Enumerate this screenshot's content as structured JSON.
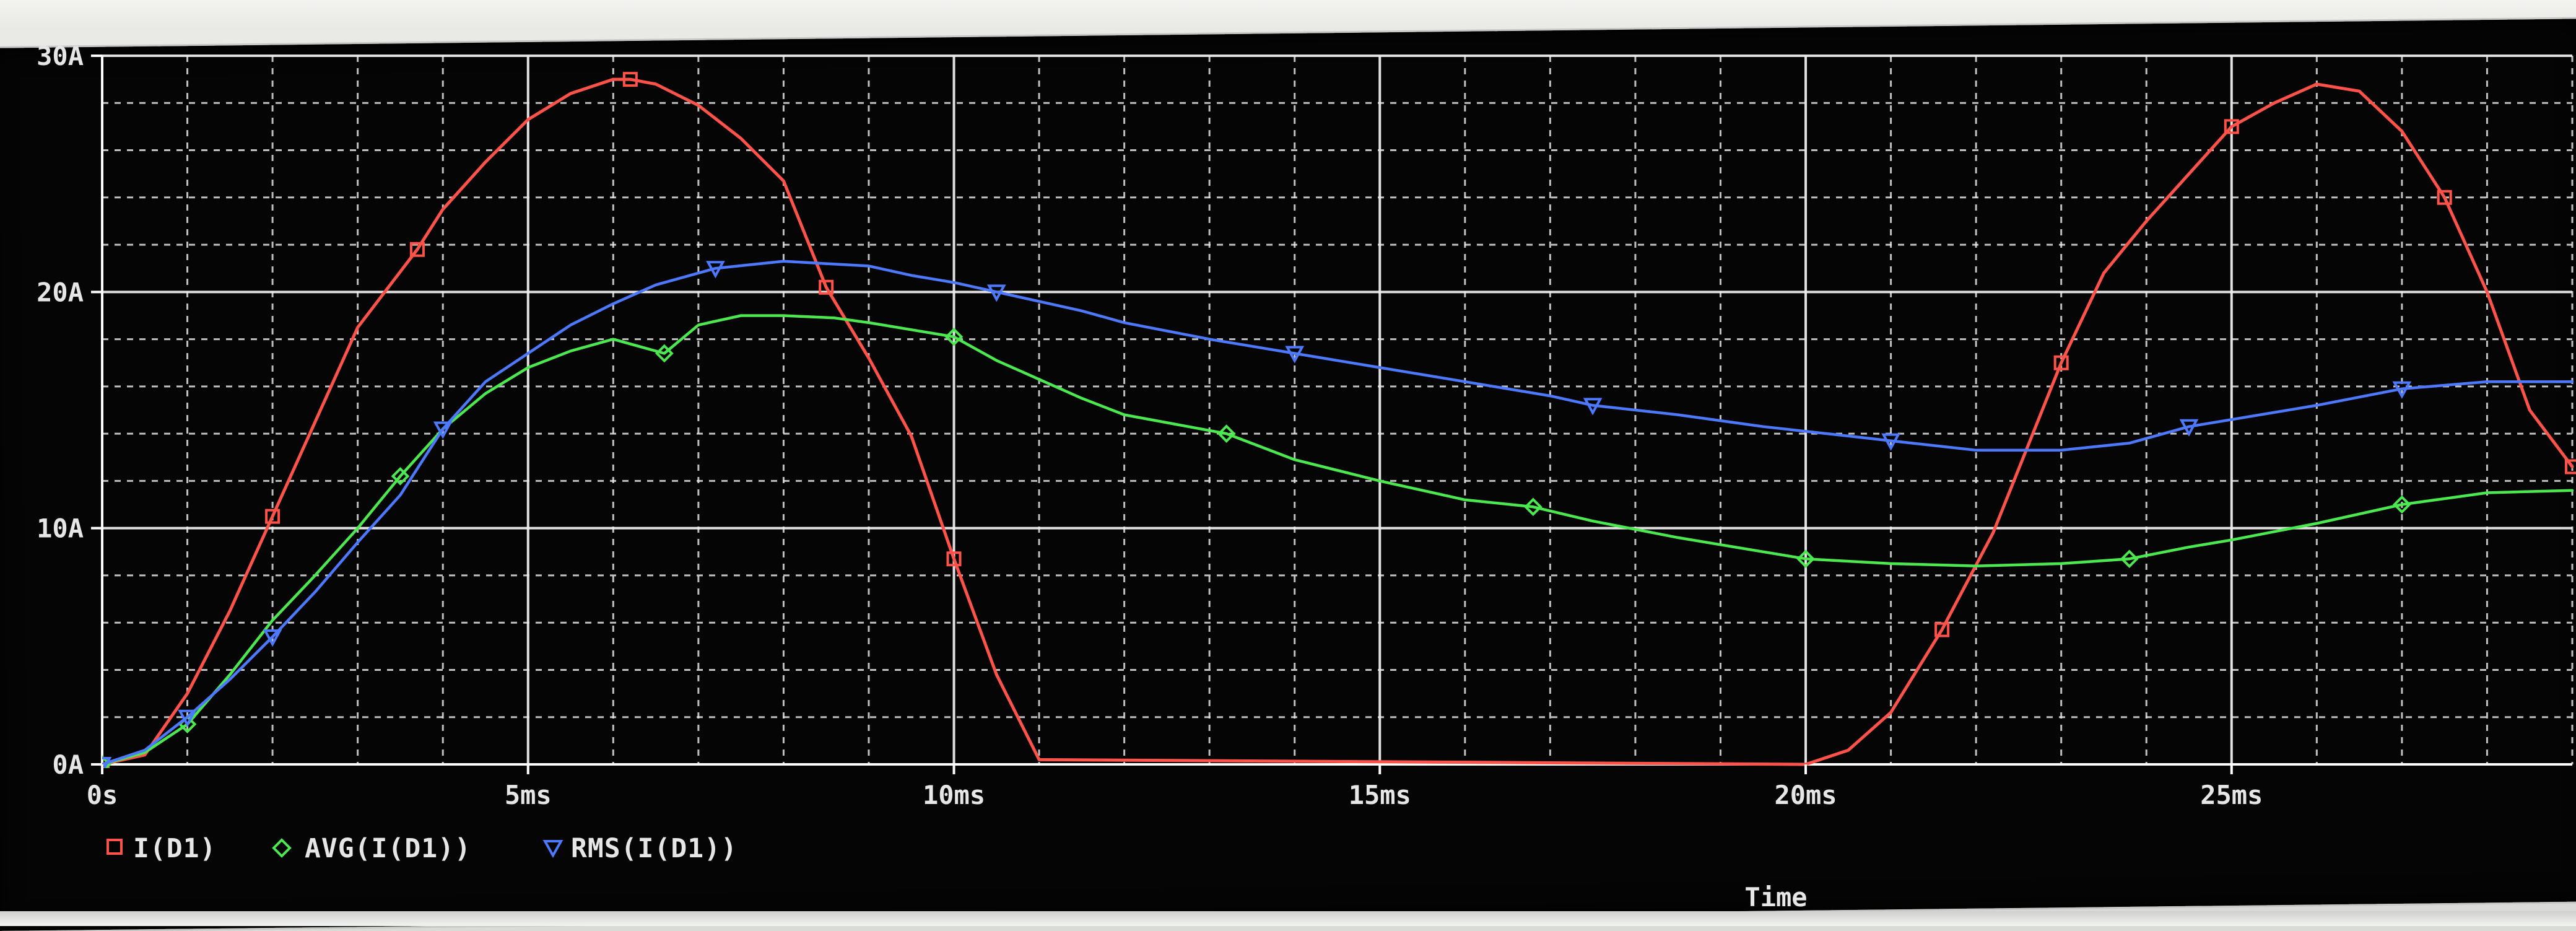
{
  "chart_data": {
    "type": "line",
    "x_unit": "ms",
    "y_unit": "A",
    "xlim": [
      0,
      29
    ],
    "ylim": [
      0,
      30
    ],
    "grid": true,
    "legend_placement": "bottom-left",
    "xlabel": "Time",
    "x_tick_labels": [
      "0s",
      "5ms",
      "10ms",
      "15ms",
      "20ms",
      "25ms"
    ],
    "y_tick_labels": [
      "0A",
      "10A",
      "20A",
      "30A"
    ],
    "series": [
      {
        "name": "I(D1)",
        "color": "#ff5248",
        "marker": "square",
        "points": [
          [
            0,
            0
          ],
          [
            0.5,
            0.4
          ],
          [
            1.0,
            3.0
          ],
          [
            1.5,
            6.5
          ],
          [
            2.0,
            10.5
          ],
          [
            2.5,
            14.5
          ],
          [
            3.0,
            18.5
          ],
          [
            3.7,
            21.8
          ],
          [
            4.0,
            23.5
          ],
          [
            4.5,
            25.5
          ],
          [
            5.0,
            27.3
          ],
          [
            5.5,
            28.4
          ],
          [
            6.0,
            29.0
          ],
          [
            6.2,
            29.0
          ],
          [
            6.5,
            28.8
          ],
          [
            7.0,
            27.9
          ],
          [
            7.5,
            26.5
          ],
          [
            8.0,
            24.7
          ],
          [
            8.5,
            20.2
          ],
          [
            9.0,
            17.2
          ],
          [
            9.5,
            13.9
          ],
          [
            10.0,
            8.7
          ],
          [
            10.5,
            3.8
          ],
          [
            11.0,
            0.2
          ],
          [
            20.0,
            0
          ],
          [
            20.5,
            0.6
          ],
          [
            21.0,
            2.2
          ],
          [
            21.6,
            5.7
          ],
          [
            22.2,
            9.8
          ],
          [
            23.0,
            17.0
          ],
          [
            23.5,
            20.8
          ],
          [
            24.0,
            23.0
          ],
          [
            24.5,
            25.0
          ],
          [
            25.0,
            27.0
          ],
          [
            25.5,
            28.0
          ],
          [
            26.0,
            28.8
          ],
          [
            26.5,
            28.5
          ],
          [
            27.0,
            26.8
          ],
          [
            27.5,
            24.0
          ],
          [
            28.0,
            20.0
          ],
          [
            28.5,
            15.0
          ],
          [
            29.0,
            12.6
          ]
        ]
      },
      {
        "name": "AVG(I(D1))",
        "color": "#4ce84f",
        "marker": "diamond",
        "points": [
          [
            0,
            0
          ],
          [
            0.5,
            0.5
          ],
          [
            1.0,
            1.7
          ],
          [
            1.5,
            3.8
          ],
          [
            2.0,
            6.1
          ],
          [
            2.5,
            8.0
          ],
          [
            3.0,
            10.0
          ],
          [
            3.5,
            12.2
          ],
          [
            4.0,
            14.2
          ],
          [
            4.5,
            15.7
          ],
          [
            5.0,
            16.8
          ],
          [
            5.5,
            17.5
          ],
          [
            6.0,
            18.0
          ],
          [
            6.6,
            17.4
          ],
          [
            7.0,
            18.6
          ],
          [
            7.5,
            19.0
          ],
          [
            8.0,
            19.0
          ],
          [
            8.6,
            18.9
          ],
          [
            9.0,
            18.7
          ],
          [
            9.5,
            18.4
          ],
          [
            10.0,
            18.1
          ],
          [
            10.5,
            17.1
          ],
          [
            11.0,
            16.3
          ],
          [
            11.5,
            15.5
          ],
          [
            12.0,
            14.8
          ],
          [
            13.2,
            14.0
          ],
          [
            14.0,
            12.9
          ],
          [
            15.0,
            12.0
          ],
          [
            16.0,
            11.2
          ],
          [
            16.8,
            10.9
          ],
          [
            17.5,
            10.3
          ],
          [
            18.5,
            9.6
          ],
          [
            19.5,
            9.0
          ],
          [
            20.0,
            8.7
          ],
          [
            21.0,
            8.5
          ],
          [
            22.0,
            8.4
          ],
          [
            23.0,
            8.5
          ],
          [
            23.8,
            8.7
          ],
          [
            24.5,
            9.2
          ],
          [
            25.0,
            9.5
          ],
          [
            26.0,
            10.2
          ],
          [
            27.0,
            11.0
          ],
          [
            28.0,
            11.5
          ],
          [
            29.0,
            11.6
          ]
        ]
      },
      {
        "name": "RMS(I(D1))",
        "color": "#4d79ff",
        "marker": "triangle-down",
        "points": [
          [
            0,
            0
          ],
          [
            0.5,
            0.6
          ],
          [
            1.0,
            2.0
          ],
          [
            1.5,
            3.6
          ],
          [
            2.0,
            5.4
          ],
          [
            2.5,
            7.3
          ],
          [
            3.0,
            9.4
          ],
          [
            3.5,
            11.4
          ],
          [
            4.0,
            14.2
          ],
          [
            4.5,
            16.2
          ],
          [
            5.0,
            17.4
          ],
          [
            5.5,
            18.6
          ],
          [
            6.0,
            19.5
          ],
          [
            6.5,
            20.3
          ],
          [
            7.2,
            21.0
          ],
          [
            8.0,
            21.3
          ],
          [
            8.5,
            21.2
          ],
          [
            9.0,
            21.1
          ],
          [
            9.5,
            20.7
          ],
          [
            10.0,
            20.4
          ],
          [
            10.5,
            20.0
          ],
          [
            11.0,
            19.6
          ],
          [
            11.5,
            19.2
          ],
          [
            12.0,
            18.7
          ],
          [
            13.0,
            18.0
          ],
          [
            14.0,
            17.4
          ],
          [
            15.0,
            16.8
          ],
          [
            16.0,
            16.2
          ],
          [
            17.0,
            15.6
          ],
          [
            17.5,
            15.2
          ],
          [
            18.5,
            14.8
          ],
          [
            19.5,
            14.3
          ],
          [
            20.5,
            13.9
          ],
          [
            21.0,
            13.7
          ],
          [
            22.0,
            13.3
          ],
          [
            23.0,
            13.3
          ],
          [
            23.8,
            13.6
          ],
          [
            24.5,
            14.3
          ],
          [
            25.0,
            14.6
          ],
          [
            26.0,
            15.2
          ],
          [
            27.0,
            15.9
          ],
          [
            28.0,
            16.2
          ],
          [
            29.0,
            16.2
          ]
        ]
      }
    ]
  }
}
